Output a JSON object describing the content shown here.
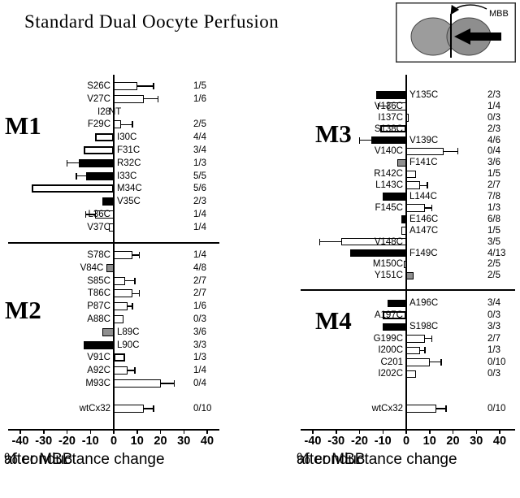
{
  "figure": {
    "title": "Standard Dual Oocyte Perfusion"
  },
  "inset": {
    "label": "MBB"
  },
  "axis": {
    "caption_line1": "% conductance change",
    "caption_line2": "after MBB"
  },
  "chart_data": [
    {
      "type": "bar",
      "orientation": "horizontal",
      "xlabel": "% conductance change after MBB",
      "xlim": [
        -44,
        44
      ],
      "xticks": [
        -40,
        -30,
        -20,
        -10,
        0,
        10,
        20,
        30,
        40
      ],
      "bar_fills": {
        "white": "#ffffff",
        "black": "#000000",
        "gray": "#8f8f8f",
        "thick": "#ffffff"
      },
      "sections": [
        {
          "name": "M1",
          "rows": [
            {
              "label": "S26C",
              "value": 10,
              "err": 7,
              "fill": "white",
              "frac": "1/5",
              "side": "L"
            },
            {
              "label": "V27C",
              "value": 13,
              "err": 6,
              "fill": "white",
              "frac": "1/6",
              "side": "L"
            },
            {
              "label": "I28",
              "value": null,
              "nt": "NT",
              "frac": "",
              "side": "L"
            },
            {
              "label": "F29C",
              "value": 3,
              "err": 5,
              "fill": "white",
              "frac": "2/5",
              "side": "L"
            },
            {
              "label": "I30C",
              "value": -8,
              "fill": "thick",
              "frac": "4/4",
              "side": "R"
            },
            {
              "label": "F31C",
              "value": -13,
              "fill": "thick",
              "frac": "3/4",
              "side": "R"
            },
            {
              "label": "R32C",
              "value": -15,
              "err": 5,
              "fill": "black",
              "frac": "1/3",
              "side": "R"
            },
            {
              "label": "I33C",
              "value": -12,
              "err": 4,
              "fill": "black",
              "frac": "5/5",
              "side": "R"
            },
            {
              "label": "M34C",
              "value": -35,
              "fill": "thick",
              "frac": "5/6",
              "side": "R"
            },
            {
              "label": "V35C",
              "value": -5,
              "fill": "black",
              "frac": "2/3",
              "side": "R"
            },
            {
              "label": "L36C",
              "value": -8,
              "err": 4,
              "fill": "white",
              "frac": "1/4",
              "side": "L"
            },
            {
              "label": "V37C",
              "value": -2,
              "fill": "white",
              "frac": "1/4",
              "side": "L"
            }
          ]
        },
        {
          "name": "M2",
          "rows": [
            {
              "label": "S78C",
              "value": 8,
              "err": 3,
              "fill": "white",
              "frac": "1/4",
              "side": "L"
            },
            {
              "label": "V84C",
              "value": -3,
              "fill": "gray",
              "frac": "4/8",
              "side": "L"
            },
            {
              "label": "S85C",
              "value": 5,
              "err": 4,
              "fill": "white",
              "frac": "2/7",
              "side": "L"
            },
            {
              "label": "T86C",
              "value": 8,
              "err": 3,
              "fill": "white",
              "frac": "2/7",
              "side": "L"
            },
            {
              "label": "P87C",
              "value": 6,
              "err": 2,
              "fill": "white",
              "frac": "1/6",
              "side": "L"
            },
            {
              "label": "A88C",
              "value": 4,
              "fill": "white",
              "frac": "0/3",
              "side": "L"
            },
            {
              "label": "L89C",
              "value": -5,
              "fill": "gray",
              "frac": "3/6",
              "side": "R"
            },
            {
              "label": "L90C",
              "value": -13,
              "fill": "black",
              "frac": "3/3",
              "side": "R"
            },
            {
              "label": "V91C",
              "value": 5,
              "fill": "thick",
              "frac": "1/3",
              "side": "L"
            },
            {
              "label": "A92C",
              "value": 6,
              "err": 3,
              "fill": "white",
              "frac": "1/4",
              "side": "L"
            },
            {
              "label": "M93C",
              "value": 20,
              "err": 6,
              "fill": "white",
              "frac": "0/4",
              "side": "L"
            }
          ]
        }
      ],
      "wt": {
        "label": "wtCx32",
        "value": 13,
        "err": 4,
        "fill": "white",
        "frac": "0/10",
        "side": "L"
      }
    },
    {
      "type": "bar",
      "orientation": "horizontal",
      "xlabel": "% conductance change after MBB",
      "xlim": [
        -44,
        44
      ],
      "xticks": [
        -40,
        -30,
        -20,
        -10,
        0,
        10,
        20,
        30,
        40
      ],
      "bar_fills": {
        "white": "#ffffff",
        "black": "#000000",
        "gray": "#8f8f8f",
        "thick": "#ffffff"
      },
      "sections": [
        {
          "name": "M3",
          "rows": [
            {
              "label": "Y135C",
              "value": -13,
              "fill": "black",
              "frac": "2/3",
              "side": "R"
            },
            {
              "label": "V136C",
              "value": -8,
              "err": 4,
              "fill": "white",
              "frac": "1/4",
              "side": "L"
            },
            {
              "label": "I137C",
              "value": 1,
              "fill": "white",
              "frac": "0/3",
              "side": "L"
            },
            {
              "label": "S138C",
              "value": -11,
              "fill": "thick",
              "frac": "2/3",
              "side": "L"
            },
            {
              "label": "V139C",
              "value": -15,
              "err": 5,
              "fill": "black",
              "frac": "4/6",
              "side": "R"
            },
            {
              "label": "V140C",
              "value": 16,
              "err": 6,
              "fill": "white",
              "frac": "0/4",
              "side": "L"
            },
            {
              "label": "F141C",
              "value": -4,
              "fill": "gray",
              "frac": "3/6",
              "side": "R"
            },
            {
              "label": "R142C",
              "value": 4,
              "fill": "white",
              "frac": "1/5",
              "side": "L"
            },
            {
              "label": "L143C",
              "value": 6,
              "err": 3,
              "fill": "white",
              "frac": "2/7",
              "side": "L"
            },
            {
              "label": "L144C",
              "value": -10,
              "fill": "black",
              "frac": "7/8",
              "side": "R"
            },
            {
              "label": "F145C",
              "value": 8,
              "err": 3,
              "fill": "white",
              "frac": "1/3",
              "side": "L"
            },
            {
              "label": "E146C",
              "value": -2,
              "fill": "black",
              "frac": "6/8",
              "side": "R"
            },
            {
              "label": "A147C",
              "value": -2,
              "fill": "white",
              "frac": "1/5",
              "side": "R"
            },
            {
              "label": "V148C",
              "value": -28,
              "err": 9,
              "fill": "white",
              "frac": "3/5",
              "side": "L"
            },
            {
              "label": "F149C",
              "value": -24,
              "fill": "black",
              "frac": "4/13",
              "side": "R"
            },
            {
              "label": "M150C",
              "value": -1,
              "fill": "white",
              "frac": "2/5",
              "side": "L"
            },
            {
              "label": "Y151C",
              "value": 3,
              "fill": "gray",
              "frac": "2/5",
              "side": "L"
            }
          ]
        },
        {
          "name": "M4",
          "rows": [
            {
              "label": "A196C",
              "value": -8,
              "fill": "black",
              "frac": "3/4",
              "side": "R"
            },
            {
              "label": "A197C",
              "value": -10,
              "fill": "thick",
              "frac": "0/3",
              "side": "L"
            },
            {
              "label": "S198C",
              "value": -10,
              "fill": "black",
              "frac": "3/3",
              "side": "R"
            },
            {
              "label": "G199C",
              "value": 8,
              "err": 3,
              "fill": "white",
              "frac": "2/7",
              "side": "L"
            },
            {
              "label": "I200C",
              "value": 6,
              "err": 2,
              "fill": "white",
              "frac": "1/3",
              "side": "L"
            },
            {
              "label": "C201",
              "value": 10,
              "err": 5,
              "fill": "white",
              "frac": "0/10",
              "side": "L"
            },
            {
              "label": "I202C",
              "value": 4,
              "fill": "white",
              "frac": "0/3",
              "side": "L"
            }
          ]
        }
      ],
      "wt": {
        "label": "wtCx32",
        "value": 13,
        "err": 4,
        "fill": "white",
        "frac": "0/10",
        "side": "L"
      }
    }
  ]
}
